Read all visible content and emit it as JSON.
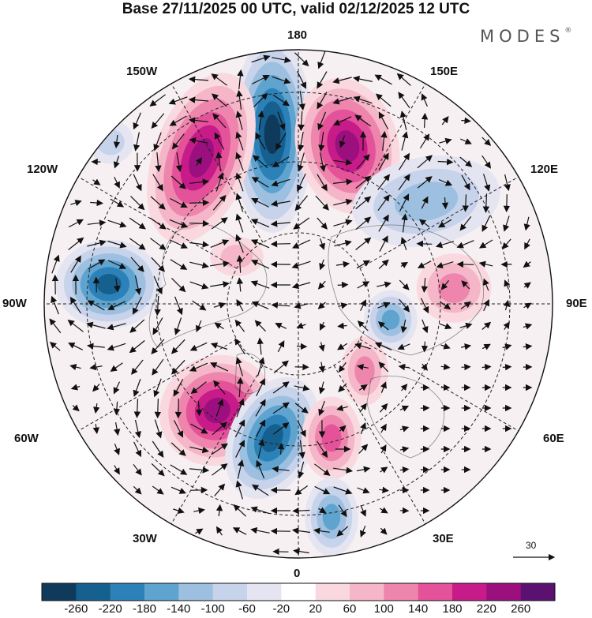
{
  "header": {
    "title": "Base 27/11/2025 00 UTC, valid 02/12/2025 12 UTC",
    "brand": "MODES",
    "brand_mark": "®"
  },
  "longitude_labels": {
    "n180": "180",
    "w150": "150W",
    "e150": "150E",
    "w120": "120W",
    "e120": "120E",
    "w90": "90W",
    "e90": "90E",
    "w60": "60W",
    "e60": "60E",
    "w30": "30W",
    "e30": "30E",
    "s0": "0"
  },
  "vector_scale": {
    "label": "30"
  },
  "colorbar": {
    "colors": [
      "#0f3a5c",
      "#16608f",
      "#2c82b8",
      "#5fa3cf",
      "#9dc0e0",
      "#c6d3ea",
      "#e5e5f1",
      "#ffffff",
      "#f9d9df",
      "#f4b6c8",
      "#ee85ad",
      "#e45399",
      "#c71b8a",
      "#9c0f7f",
      "#5a1170"
    ],
    "ticks": [
      "-260",
      "-220",
      "-180",
      "-140",
      "-100",
      "-60",
      "-20",
      "20",
      "60",
      "100",
      "140",
      "180",
      "220",
      "260"
    ]
  },
  "anomalies": [
    {
      "name": "neg-north-center",
      "sign": "neg",
      "level": 7,
      "bx": 345,
      "by": 170,
      "rx": 38,
      "ry": 100,
      "rot": 0
    },
    {
      "name": "pos-north-east",
      "sign": "pos",
      "level": 6,
      "bx": 440,
      "by": 185,
      "rx": 48,
      "ry": 70,
      "rot": -15
    },
    {
      "name": "pos-north-west",
      "sign": "pos",
      "level": 6,
      "bx": 255,
      "by": 200,
      "rx": 45,
      "ry": 90,
      "rot": 20
    },
    {
      "name": "neg-west",
      "sign": "neg",
      "level": 6,
      "bx": 138,
      "by": 360,
      "rx": 50,
      "ry": 45,
      "rot": 0
    },
    {
      "name": "neg-east",
      "sign": "neg",
      "level": 3,
      "bx": 540,
      "by": 255,
      "rx": 70,
      "ry": 45,
      "rot": -10
    },
    {
      "name": "pos-east",
      "sign": "pos",
      "level": 3,
      "bx": 575,
      "by": 365,
      "rx": 35,
      "ry": 35,
      "rot": 0
    },
    {
      "name": "neg-east-center",
      "sign": "neg",
      "level": 4,
      "bx": 495,
      "by": 405,
      "rx": 25,
      "ry": 30,
      "rot": 0
    },
    {
      "name": "pos-south-east-a",
      "sign": "pos",
      "level": 3,
      "bx": 462,
      "by": 470,
      "rx": 22,
      "ry": 35,
      "rot": 0
    },
    {
      "name": "pos-south-west",
      "sign": "pos",
      "level": 6,
      "bx": 275,
      "by": 520,
      "rx": 55,
      "ry": 55,
      "rot": -30
    },
    {
      "name": "neg-south",
      "sign": "neg",
      "level": 6,
      "bx": 345,
      "by": 555,
      "rx": 40,
      "ry": 65,
      "rot": 25
    },
    {
      "name": "pos-south-east-b",
      "sign": "pos",
      "level": 4,
      "bx": 420,
      "by": 555,
      "rx": 28,
      "ry": 42,
      "rot": 0
    },
    {
      "name": "neg-south-far",
      "sign": "neg",
      "level": 4,
      "bx": 420,
      "by": 655,
      "rx": 25,
      "ry": 40,
      "rot": 0
    },
    {
      "name": "neg-far-nw",
      "sign": "neg",
      "level": 2,
      "bx": 140,
      "by": 180,
      "rx": 22,
      "ry": 22,
      "rot": 0
    },
    {
      "name": "pos-small-nw",
      "sign": "pos",
      "level": 2,
      "bx": 300,
      "by": 325,
      "rx": 25,
      "ry": 20,
      "rot": 0
    }
  ]
}
